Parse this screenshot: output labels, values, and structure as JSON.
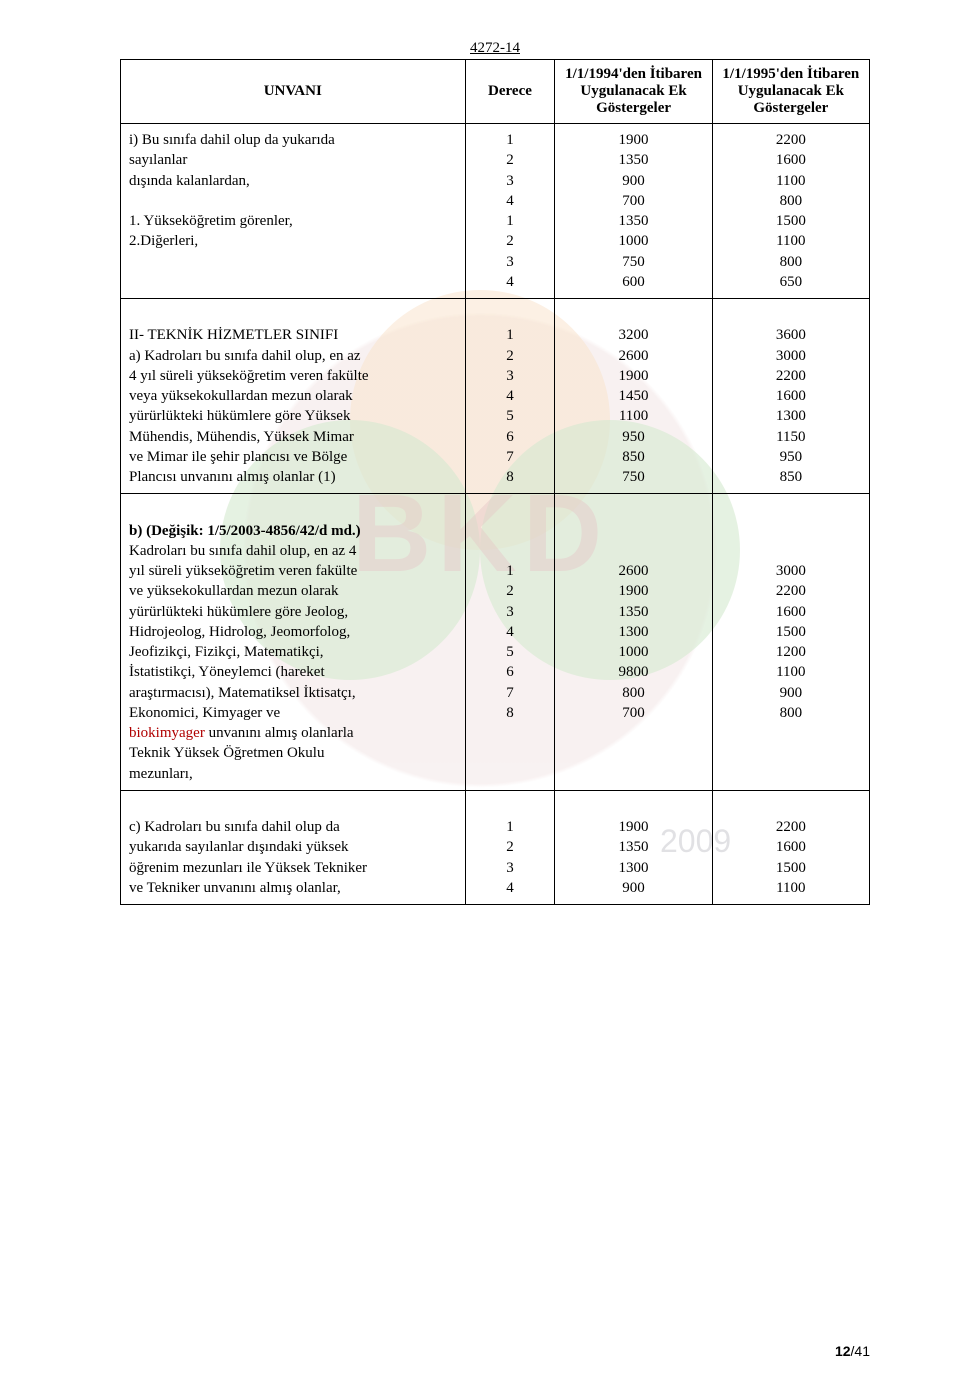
{
  "doc_number": "4272-14",
  "headers": {
    "unvani": "UNVANI",
    "derece": "Derece",
    "col1994": "1/1/1994'den İtibaren Uygulanacak Ek Göstergeler",
    "col1995": "1/1/1995'den İtibaren Uygulanacak Ek Göstergeler"
  },
  "section1": {
    "labels": [
      "i) Bu sınıfa dahil olup da yukarıda",
      "sayılanlar",
      "dışında kalanlardan,",
      "1. Yükseköğretim görenler,",
      "2.Diğerleri,"
    ],
    "derece": [
      "1",
      "2",
      "3",
      "4",
      "1",
      "2",
      "3",
      "4"
    ],
    "col1994": [
      "1900",
      "1350",
      "900",
      "700",
      "1350",
      "1000",
      "750",
      "600"
    ],
    "col1995": [
      "2200",
      "1600",
      "1100",
      "800",
      "1500",
      "1100",
      "800",
      "650"
    ]
  },
  "section2": {
    "labels": [
      "II- TEKNİK HİZMETLER SINIFI",
      "a) Kadroları bu sınıfa dahil olup, en az",
      "4 yıl süreli yükseköğretim veren fakülte",
      "veya yüksekokullardan mezun olarak",
      "yürürlükteki hükümlere göre Yüksek",
      "Mühendis, Mühendis, Yüksek Mimar",
      "ve Mimar ile şehir plancısı ve Bölge",
      "Plancısı unvanını almış olanlar (1)"
    ],
    "derece": [
      "1",
      "2",
      "3",
      "4",
      "5",
      "6",
      "7",
      "8"
    ],
    "col1994": [
      "3200",
      "2600",
      "1900",
      "1450",
      "1100",
      "950",
      "850",
      "750"
    ],
    "col1995": [
      "3600",
      "3000",
      "2200",
      "1600",
      "1300",
      "1150",
      "950",
      "850"
    ]
  },
  "section3": {
    "lead_bold": "b) (Değişik: 1/5/2003-4856/42/d md.)",
    "labels": [
      "Kadroları bu sınıfa dahil olup, en az 4",
      "yıl süreli yükseköğretim veren fakülte",
      "ve yüksekokullardan mezun olarak",
      "yürürlükteki hükümlere göre Jeolog,",
      "Hidrojeolog, Hidrolog, Jeomorfolog,",
      "Jeofizikçi, Fizikçi, Matematikçi,",
      "İstatistikçi, Yöneylemci (hareket",
      "araştırmacısı), Matematiksel İktisatçı,",
      "Ekonomici, Kimyager ve"
    ],
    "highlight": "biokimyager",
    "trail1": " unvanını almış olanlarla",
    "trail2": "Teknik Yüksek Öğretmen Okulu",
    "trail3": "mezunları,",
    "derece": [
      "",
      "1",
      "2",
      "3",
      "4",
      "5",
      "6",
      "7",
      "8"
    ],
    "col1994": [
      "",
      "2600",
      "1900",
      "1350",
      "1300",
      "1000",
      "9800",
      "800",
      "700"
    ],
    "col1995": [
      "",
      "3000",
      "2200",
      "1600",
      "1500",
      "1200",
      "1100",
      "900",
      "800"
    ]
  },
  "section4": {
    "labels": [
      "c) Kadroları bu sınıfa dahil olup da",
      "yukarıda sayılanlar dışındaki yüksek",
      "öğrenim mezunları ile Yüksek Tekniker",
      "ve Tekniker unvanını almış olanlar,"
    ],
    "derece": [
      "1",
      "2",
      "3",
      "4"
    ],
    "col1994": [
      "1900",
      "1350",
      "1300",
      "900"
    ],
    "col1995": [
      "2200",
      "1600",
      "1500",
      "1100"
    ]
  },
  "footer": {
    "page": "12",
    "total": "/41"
  }
}
